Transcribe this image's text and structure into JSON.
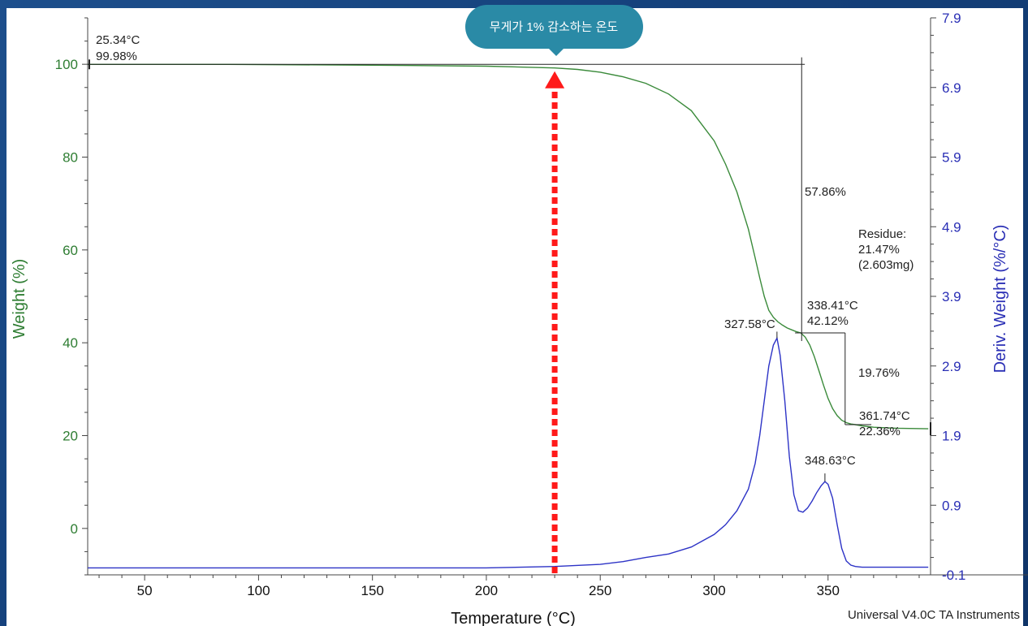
{
  "chart_data": {
    "type": "line",
    "xlabel": "Temperature (°C)",
    "ylabel_left": "Weight (%)",
    "ylabel_right": "Deriv. Weight (%/°C)",
    "xlim": [
      25,
      395
    ],
    "ylim_left": [
      -10,
      110
    ],
    "ylim_right": [
      -0.1,
      7.9
    ],
    "x_ticks": [
      50,
      100,
      150,
      200,
      250,
      300,
      350
    ],
    "y_ticks_left": [
      0,
      20,
      40,
      60,
      80,
      100
    ],
    "y_ticks_right": [
      -0.1,
      0.9,
      1.9,
      2.9,
      3.9,
      4.9,
      5.9,
      6.9,
      7.9
    ],
    "y_tick_labels_right": [
      "-0.1",
      "0.9",
      "1.9",
      "2.9",
      "3.9",
      "4.9",
      "5.9",
      "6.9",
      "7.9"
    ],
    "colors": {
      "weight": "#3a8a3a",
      "deriv": "#2d33c6",
      "callout": "#2a8aa6",
      "arrow": "#ff1a1a"
    },
    "series": [
      {
        "axis": "left",
        "x": [
          25,
          87,
          150,
          200,
          230,
          240,
          250,
          260,
          270,
          280,
          290,
          300,
          305,
          310,
          315,
          318,
          320,
          322,
          324,
          326,
          328,
          330,
          332,
          334,
          336,
          338,
          340,
          342,
          344,
          346,
          348,
          350,
          352,
          354,
          356,
          358,
          360,
          362,
          365,
          370,
          380,
          394
        ],
        "values": [
          99.98,
          99.98,
          99.8,
          99.6,
          99.2,
          98.9,
          98.3,
          97.3,
          95.9,
          93.6,
          90.0,
          83.5,
          78.5,
          72.5,
          64.5,
          58.3,
          54.0,
          50.0,
          47.0,
          45.5,
          44.5,
          43.8,
          43.2,
          42.8,
          42.4,
          42.12,
          41.2,
          39.5,
          37.0,
          34.0,
          30.9,
          28.0,
          25.8,
          24.3,
          23.3,
          22.8,
          22.5,
          22.36,
          22.1,
          21.8,
          21.6,
          21.47
        ]
      },
      {
        "axis": "right",
        "x": [
          25,
          150,
          200,
          230,
          250,
          260,
          270,
          280,
          290,
          300,
          305,
          310,
          315,
          318,
          320,
          322,
          324,
          326,
          327.58,
          329,
          331,
          333,
          335,
          337,
          339,
          341,
          343,
          345,
          347,
          348.63,
          350,
          352,
          354,
          356,
          358,
          360,
          362,
          365,
          370,
          380,
          394
        ],
        "values": [
          0.0,
          0.0,
          0.0,
          0.02,
          0.05,
          0.09,
          0.15,
          0.2,
          0.3,
          0.48,
          0.62,
          0.82,
          1.13,
          1.5,
          1.9,
          2.4,
          2.9,
          3.2,
          3.3,
          3.05,
          2.4,
          1.6,
          1.05,
          0.82,
          0.8,
          0.86,
          0.96,
          1.08,
          1.18,
          1.24,
          1.2,
          1.0,
          0.62,
          0.28,
          0.1,
          0.04,
          0.02,
          0.01,
          0.01,
          0.01,
          0.01
        ]
      }
    ],
    "annotations": {
      "start": {
        "temp": "25.34°C",
        "weight": "99.98%"
      },
      "drop": "57.86%",
      "residue": {
        "title": "Residue:",
        "pct": "21.47%",
        "mass": "(2.603mg)"
      },
      "step1": {
        "temp": "338.41°C",
        "weight": "42.12%"
      },
      "peak1": "327.58°C",
      "drop2": "19.76%",
      "step2": {
        "temp": "361.74°C",
        "weight": "22.36%"
      },
      "peak2": "348.63°C"
    },
    "callout": "무게가 1% 감소하는 온도",
    "arrow_x": 230,
    "footer": "Universal V4.0C TA Instruments"
  }
}
